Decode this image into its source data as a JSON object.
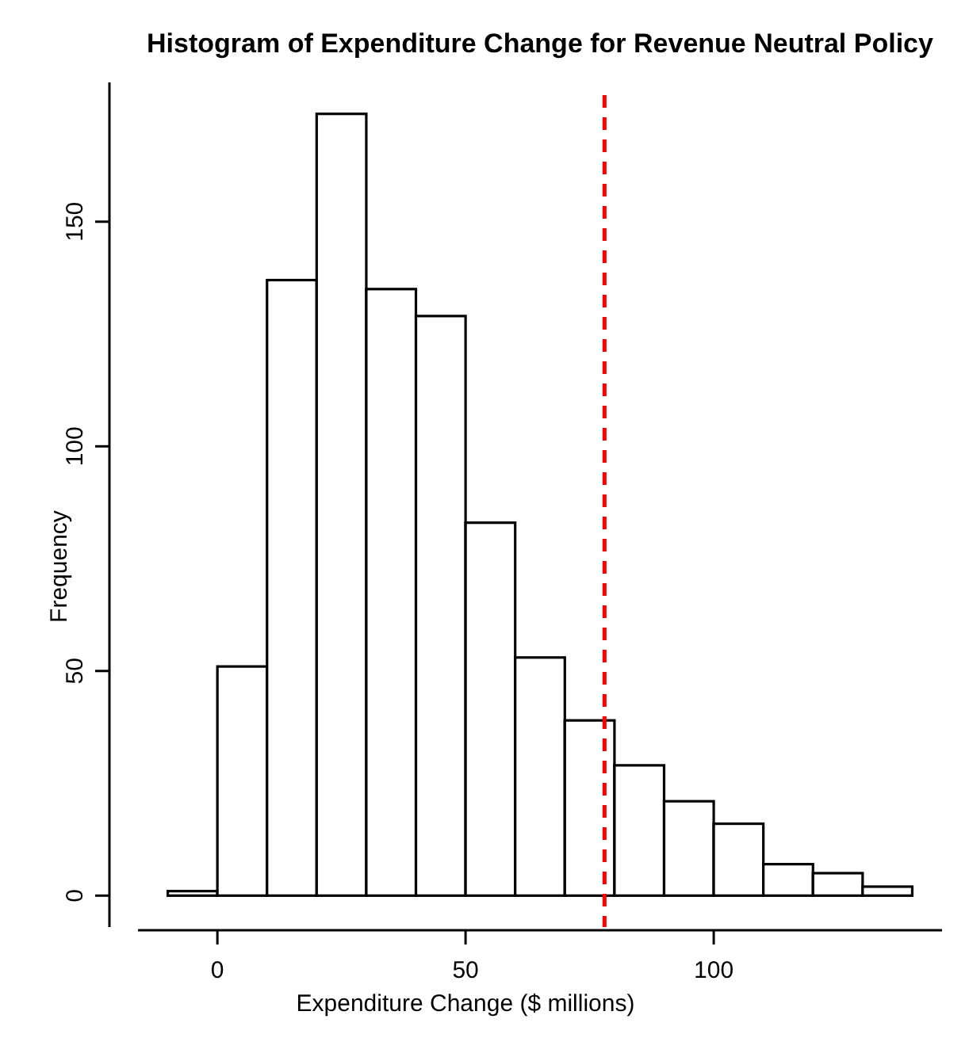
{
  "chart_data": {
    "type": "histogram",
    "title": "Histogram of Expenditure Change for Revenue Neutral Policy",
    "xlabel": "Expenditure Change ($ millions)",
    "ylabel": "Frequency",
    "bins": [
      -10,
      0,
      10,
      20,
      30,
      40,
      50,
      60,
      70,
      80,
      90,
      100,
      110,
      120,
      130,
      140
    ],
    "values": [
      1,
      51,
      137,
      174,
      135,
      129,
      83,
      53,
      39,
      29,
      21,
      16,
      7,
      5,
      2
    ],
    "color": "#ffffff",
    "xlim": [
      -16,
      146
    ],
    "xticks": [
      0,
      50,
      100
    ],
    "ylim": [
      -7,
      181
    ],
    "yticks": [
      0,
      50,
      100,
      150
    ],
    "grid": false,
    "ref_lines": [
      {
        "axis": "x",
        "value": 78,
        "color": "#ff0000",
        "line_style": "dashed"
      }
    ]
  }
}
